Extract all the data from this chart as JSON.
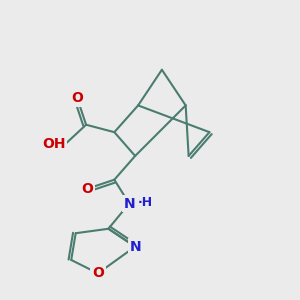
{
  "background_color": "#ebebeb",
  "bond_color": "#4a7c6f",
  "bond_lw": 1.5,
  "font_size": 10,
  "atom_colors": {
    "O": "#cc0000",
    "N": "#2020cc",
    "C": "#4a7c6f",
    "H": "#4a7c6f"
  },
  "figsize": [
    3.0,
    3.0
  ],
  "dpi": 100
}
